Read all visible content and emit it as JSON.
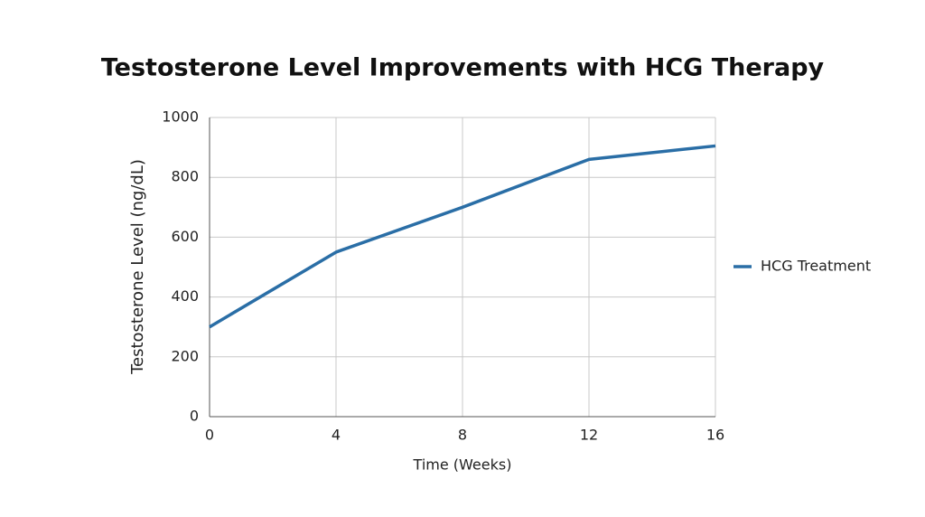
{
  "chart_data": {
    "type": "line",
    "title": "Testosterone Level Improvements with HCG Therapy",
    "x_label": "Time (Weeks)",
    "y_label": "Testosterone Level (ng/dL)",
    "x": [
      0,
      4,
      8,
      12,
      16
    ],
    "series": [
      {
        "name": "HCG Treatment",
        "color": "#2a6ea6",
        "values": [
          300,
          550,
          700,
          860,
          905
        ]
      }
    ],
    "xlim": [
      0,
      16
    ],
    "xticks": [
      0,
      4,
      8,
      12,
      16
    ],
    "ylim": [
      0,
      1000
    ],
    "yticks": [
      0,
      200,
      400,
      600,
      800,
      1000
    ],
    "grid": true,
    "legend": "right"
  }
}
